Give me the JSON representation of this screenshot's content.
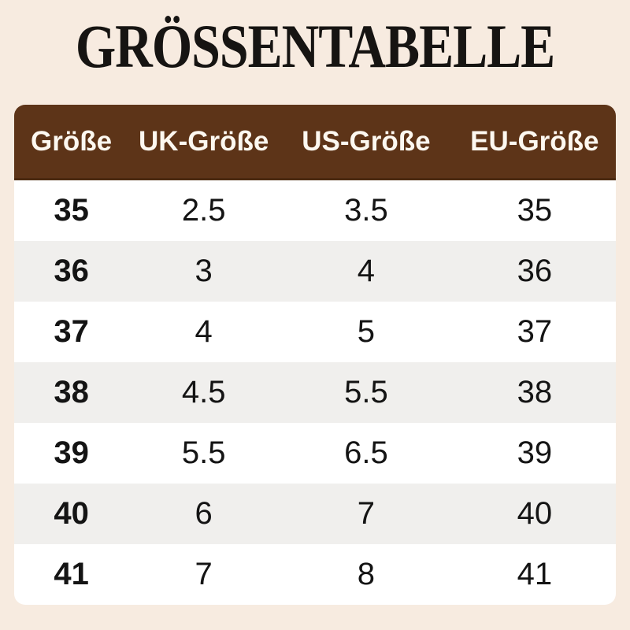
{
  "title": "GRÖSSENTABELLE",
  "colors": {
    "background": "#f7ebe0",
    "header_bg": "#5d3418",
    "header_edge": "#4c2a11",
    "header_text": "#fdf8f0",
    "row_white": "#ffffff",
    "row_gray": "#f0efed",
    "body_text": "#141414"
  },
  "table": {
    "columns": [
      "Größe",
      "UK-Größe",
      "US-Größe",
      "EU-Größe"
    ],
    "rows": [
      [
        "35",
        "2.5",
        "3.5",
        "35"
      ],
      [
        "36",
        "3",
        "4",
        "36"
      ],
      [
        "37",
        "4",
        "5",
        "37"
      ],
      [
        "38",
        "4.5",
        "5.5",
        "38"
      ],
      [
        "39",
        "5.5",
        "6.5",
        "39"
      ],
      [
        "40",
        "6",
        "7",
        "40"
      ],
      [
        "41",
        "7",
        "8",
        "41"
      ]
    ]
  },
  "chart_data": {
    "type": "table",
    "title": "GRÖSSENTABELLE",
    "columns": [
      "Größe",
      "UK-Größe",
      "US-Größe",
      "EU-Größe"
    ],
    "rows": [
      [
        "35",
        "2.5",
        "3.5",
        "35"
      ],
      [
        "36",
        "3",
        "4",
        "36"
      ],
      [
        "37",
        "4",
        "5",
        "37"
      ],
      [
        "38",
        "4.5",
        "5.5",
        "38"
      ],
      [
        "39",
        "5.5",
        "6.5",
        "39"
      ],
      [
        "40",
        "6",
        "7",
        "40"
      ],
      [
        "41",
        "7",
        "8",
        "41"
      ]
    ],
    "layout_hints": {
      "header_style": "brown bar, white bold text, rounded top corners",
      "row_striping": "white / light-gray alternating, starts white",
      "alignment": "all cells centered, first column bold"
    }
  }
}
